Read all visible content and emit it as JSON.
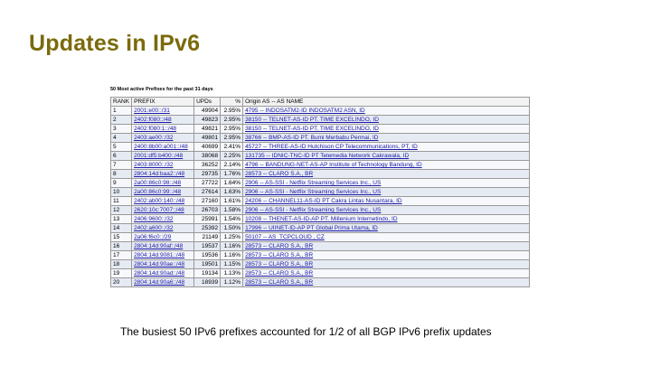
{
  "slide": {
    "title": "Updates in IPv6",
    "table_caption": "50 Most active Prefixes for the past 31 days",
    "caption": "The busiest 50 IPv6 prefixes accounted for 1/2 of all BGP IPv6 prefix updates"
  },
  "table": {
    "headers": [
      "RANK",
      "PREFIX",
      "UPDs",
      "%",
      "Origin AS -- AS NAME"
    ],
    "rows": [
      {
        "rank": "1",
        "prefix": "2001:e00::/31",
        "upds": "49904",
        "pct": "2.95%",
        "origin": "4795 -- INDOSATM2-ID INDOSATM2 ASN, ID"
      },
      {
        "rank": "2",
        "prefix": "2402:f080::/48",
        "upds": "49823",
        "pct": "2.95%",
        "origin": "38150 -- TELNET-AS-ID PT. TIME EXCELINDO, ID"
      },
      {
        "rank": "3",
        "prefix": "2402:f080:1::/48",
        "upds": "49821",
        "pct": "2.95%",
        "origin": "38150 -- TELNET-AS-ID PT. TIME EXCELINDO, ID"
      },
      {
        "rank": "4",
        "prefix": "2403:ae00::/32",
        "upds": "49801",
        "pct": "2.95%",
        "origin": "38766 -- BMP-AS-ID PT. Bumi Merbabu Permai, ID"
      },
      {
        "rank": "5",
        "prefix": "2400:8b00:a001::/48",
        "upds": "40699",
        "pct": "2.41%",
        "origin": "45727 -- THREE-AS-ID Hutchison CP Telecommunications, PT, ID"
      },
      {
        "rank": "6",
        "prefix": "2001:df5:b400::/48",
        "upds": "38068",
        "pct": "2.25%",
        "origin": "131735 -- IDNIC-TNC-ID PT Telemedia Network Cakrawala, ID"
      },
      {
        "rank": "7",
        "prefix": "2403:8000::/32",
        "upds": "36252",
        "pct": "2.14%",
        "origin": "4796 -- BANDUNG-NET-AS-AP Institute of Technology Bandung, ID"
      },
      {
        "rank": "8",
        "prefix": "2804:14d:baa2::/48",
        "upds": "29735",
        "pct": "1.76%",
        "origin": "28573 -- CLARO S.A., BR"
      },
      {
        "rank": "9",
        "prefix": "2a00:86c0:98::/48",
        "upds": "27722",
        "pct": "1.64%",
        "origin": "2906 -- AS-SSI - Netflix Streaming Services Inc., US"
      },
      {
        "rank": "10",
        "prefix": "2a00:86c0:99::/48",
        "upds": "27614",
        "pct": "1.63%",
        "origin": "2906 -- AS-SSI - Netflix Streaming Services Inc., US"
      },
      {
        "rank": "11",
        "prefix": "2402:ab00:140::/48",
        "upds": "27160",
        "pct": "1.61%",
        "origin": "24206 -- CHANNEL11-AS-ID PT Cakra Lintas Nusantara, ID"
      },
      {
        "rank": "12",
        "prefix": "2620:10c:7007::/48",
        "upds": "26703",
        "pct": "1.58%",
        "origin": "2906 -- AS-SSI - Netflix Streaming Services Inc., US"
      },
      {
        "rank": "13",
        "prefix": "2406:9600::/32",
        "upds": "25991",
        "pct": "1.54%",
        "origin": "10208 -- THENET-AS-ID-AP PT. Millenium Internetindo, ID"
      },
      {
        "rank": "14",
        "prefix": "2402:a600::/32",
        "upds": "25392",
        "pct": "1.50%",
        "origin": "17996 -- UIINET-ID-AP PT Global Prima Utama, ID"
      },
      {
        "rank": "15",
        "prefix": "2a06:f6c0::/29",
        "upds": "21149",
        "pct": "1.25%",
        "origin": "50107 -- AS_TCPCLOUD , CZ"
      },
      {
        "rank": "16",
        "prefix": "2804:14d:90af::/48",
        "upds": "19537",
        "pct": "1.16%",
        "origin": "28573 -- CLARO S.A., BR"
      },
      {
        "rank": "17",
        "prefix": "2804:14d:9081::/48",
        "upds": "19536",
        "pct": "1.16%",
        "origin": "28573 -- CLARO S.A., BR"
      },
      {
        "rank": "18",
        "prefix": "2804:14d:90ae::/48",
        "upds": "19501",
        "pct": "1.15%",
        "origin": "28573 -- CLARO S.A., BR"
      },
      {
        "rank": "19",
        "prefix": "2804:14d:90ad::/48",
        "upds": "19134",
        "pct": "1.13%",
        "origin": "28573 -- CLARO S.A., BR"
      },
      {
        "rank": "20",
        "prefix": "2804:14d:90a6::/48",
        "upds": "18939",
        "pct": "1.12%",
        "origin": "28573 -- CLARO S.A., BR"
      }
    ]
  }
}
